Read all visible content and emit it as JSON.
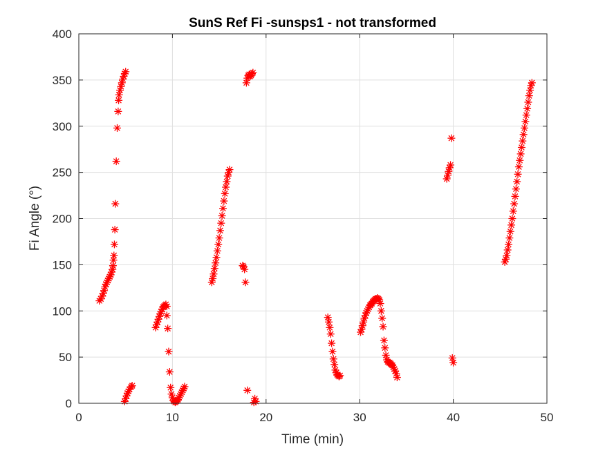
{
  "chart_data": {
    "type": "scatter",
    "title": "SunS Ref Fi -sunsps1 - not transformed",
    "xlabel": "Time (min)",
    "ylabel": "Fi Angle (°)",
    "xlim": [
      0,
      50
    ],
    "ylim": [
      0,
      400
    ],
    "xticks": [
      0,
      10,
      20,
      30,
      40,
      50
    ],
    "yticks": [
      0,
      50,
      100,
      150,
      200,
      250,
      300,
      350,
      400
    ],
    "grid": true,
    "marker": "asterisk",
    "color": "#ff0000",
    "series": [
      {
        "points": [
          [
            2.2,
            111
          ],
          [
            2.35,
            113
          ],
          [
            2.5,
            116
          ],
          [
            2.6,
            119
          ],
          [
            2.7,
            122
          ],
          [
            2.8,
            126
          ],
          [
            2.9,
            129
          ],
          [
            3.0,
            131
          ],
          [
            3.1,
            133
          ],
          [
            3.2,
            135
          ],
          [
            3.3,
            137
          ],
          [
            3.4,
            139
          ],
          [
            3.5,
            142
          ],
          [
            3.6,
            145
          ],
          [
            3.65,
            149
          ],
          [
            3.7,
            155
          ],
          [
            3.75,
            160
          ],
          [
            3.8,
            172
          ],
          [
            3.85,
            188
          ],
          [
            3.9,
            216
          ],
          [
            4.0,
            262
          ],
          [
            4.1,
            298
          ],
          [
            4.2,
            316
          ],
          [
            4.25,
            328
          ],
          [
            4.3,
            334
          ],
          [
            4.4,
            339
          ],
          [
            4.5,
            343
          ],
          [
            4.6,
            347
          ],
          [
            4.7,
            351
          ],
          [
            4.8,
            354
          ],
          [
            4.9,
            357
          ],
          [
            5.0,
            359
          ],
          [
            4.9,
            2
          ],
          [
            5.0,
            5
          ],
          [
            5.1,
            8
          ],
          [
            5.2,
            11
          ],
          [
            5.3,
            13
          ],
          [
            5.4,
            15
          ],
          [
            5.6,
            18
          ],
          [
            5.7,
            19
          ],
          [
            8.2,
            82
          ],
          [
            8.3,
            85
          ],
          [
            8.4,
            88
          ],
          [
            8.5,
            91
          ],
          [
            8.6,
            94
          ],
          [
            8.7,
            97
          ],
          [
            8.8,
            99
          ],
          [
            8.9,
            102
          ],
          [
            9.0,
            104
          ],
          [
            9.1,
            105
          ],
          [
            9.2,
            106
          ],
          [
            9.3,
            107
          ],
          [
            9.4,
            105
          ],
          [
            9.4,
            95
          ],
          [
            9.5,
            81
          ],
          [
            9.6,
            56
          ],
          [
            9.7,
            34
          ],
          [
            9.8,
            17
          ],
          [
            9.9,
            10
          ],
          [
            10.0,
            6
          ],
          [
            10.1,
            3
          ],
          [
            10.2,
            2
          ],
          [
            10.3,
            1
          ],
          [
            10.4,
            2
          ],
          [
            10.5,
            3
          ],
          [
            10.6,
            4
          ],
          [
            10.7,
            6
          ],
          [
            10.8,
            8
          ],
          [
            10.9,
            10
          ],
          [
            11.0,
            12
          ],
          [
            11.1,
            14
          ],
          [
            11.2,
            16
          ],
          [
            11.3,
            18
          ],
          [
            14.2,
            131
          ],
          [
            14.3,
            135
          ],
          [
            14.4,
            140
          ],
          [
            14.5,
            146
          ],
          [
            14.6,
            152
          ],
          [
            14.7,
            158
          ],
          [
            14.8,
            165
          ],
          [
            14.9,
            172
          ],
          [
            15.0,
            179
          ],
          [
            15.1,
            187
          ],
          [
            15.2,
            195
          ],
          [
            15.3,
            203
          ],
          [
            15.4,
            211
          ],
          [
            15.5,
            219
          ],
          [
            15.6,
            227
          ],
          [
            15.7,
            234
          ],
          [
            15.8,
            240
          ],
          [
            15.9,
            246
          ],
          [
            16.0,
            250
          ],
          [
            16.1,
            253
          ],
          [
            17.5,
            149
          ],
          [
            17.6,
            148
          ],
          [
            17.7,
            145
          ],
          [
            17.8,
            131
          ],
          [
            17.9,
            347
          ],
          [
            18.0,
            352
          ],
          [
            18.1,
            355
          ],
          [
            18.2,
            356
          ],
          [
            18.3,
            354
          ],
          [
            18.4,
            355
          ],
          [
            18.5,
            357
          ],
          [
            18.6,
            358
          ],
          [
            18.0,
            14
          ],
          [
            18.7,
            1
          ],
          [
            18.8,
            5
          ],
          [
            18.9,
            2
          ],
          [
            26.6,
            93
          ],
          [
            26.7,
            88
          ],
          [
            26.8,
            82
          ],
          [
            26.9,
            75
          ],
          [
            27.0,
            65
          ],
          [
            27.1,
            56
          ],
          [
            27.2,
            48
          ],
          [
            27.3,
            42
          ],
          [
            27.4,
            36
          ],
          [
            27.5,
            33
          ],
          [
            27.6,
            31
          ],
          [
            27.7,
            30
          ],
          [
            27.8,
            29
          ],
          [
            27.9,
            30
          ],
          [
            30.1,
            77
          ],
          [
            30.2,
            80
          ],
          [
            30.3,
            84
          ],
          [
            30.4,
            88
          ],
          [
            30.5,
            92
          ],
          [
            30.6,
            95
          ],
          [
            30.7,
            98
          ],
          [
            30.8,
            100
          ],
          [
            30.9,
            102
          ],
          [
            31.0,
            104
          ],
          [
            31.1,
            106
          ],
          [
            31.2,
            107
          ],
          [
            31.3,
            108
          ],
          [
            31.4,
            110
          ],
          [
            31.5,
            111
          ],
          [
            31.6,
            112
          ],
          [
            31.7,
            113
          ],
          [
            31.8,
            113
          ],
          [
            31.9,
            114
          ],
          [
            32.0,
            113
          ],
          [
            32.1,
            112
          ],
          [
            32.2,
            108
          ],
          [
            32.3,
            100
          ],
          [
            32.4,
            92
          ],
          [
            32.5,
            83
          ],
          [
            32.6,
            68
          ],
          [
            32.7,
            60
          ],
          [
            32.8,
            52
          ],
          [
            32.9,
            47
          ],
          [
            33.0,
            45
          ],
          [
            33.1,
            44
          ],
          [
            33.2,
            44
          ],
          [
            33.3,
            43
          ],
          [
            33.4,
            42
          ],
          [
            33.5,
            41
          ],
          [
            33.6,
            39
          ],
          [
            33.7,
            37
          ],
          [
            33.8,
            35
          ],
          [
            33.9,
            32
          ],
          [
            34.0,
            28
          ],
          [
            39.3,
            243
          ],
          [
            39.4,
            247
          ],
          [
            39.5,
            251
          ],
          [
            39.6,
            255
          ],
          [
            39.7,
            258
          ],
          [
            39.8,
            287
          ],
          [
            39.9,
            49
          ],
          [
            40.0,
            44
          ],
          [
            45.5,
            153
          ],
          [
            45.6,
            156
          ],
          [
            45.7,
            160
          ],
          [
            45.8,
            166
          ],
          [
            45.9,
            172
          ],
          [
            46.0,
            179
          ],
          [
            46.1,
            186
          ],
          [
            46.2,
            193
          ],
          [
            46.3,
            200
          ],
          [
            46.4,
            208
          ],
          [
            46.5,
            216
          ],
          [
            46.6,
            224
          ],
          [
            46.7,
            232
          ],
          [
            46.8,
            240
          ],
          [
            46.9,
            248
          ],
          [
            47.0,
            256
          ],
          [
            47.1,
            263
          ],
          [
            47.2,
            270
          ],
          [
            47.3,
            277
          ],
          [
            47.4,
            284
          ],
          [
            47.5,
            291
          ],
          [
            47.6,
            298
          ],
          [
            47.7,
            305
          ],
          [
            47.8,
            312
          ],
          [
            47.9,
            319
          ],
          [
            48.0,
            326
          ],
          [
            48.1,
            333
          ],
          [
            48.2,
            339
          ],
          [
            48.3,
            344
          ],
          [
            48.4,
            347
          ]
        ]
      }
    ]
  }
}
